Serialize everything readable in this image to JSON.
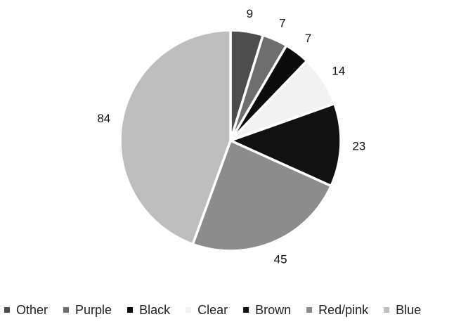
{
  "chart_data": {
    "type": "pie",
    "start_angle_deg": 0,
    "direction": "clockwise",
    "legend_position": "bottom",
    "slices": [
      {
        "label": "Other",
        "value": 9,
        "color": "#4d4d4d"
      },
      {
        "label": "Purple",
        "value": 7,
        "color": "#6e6e6e"
      },
      {
        "label": "Black",
        "value": 7,
        "color": "#0b0b0b"
      },
      {
        "label": "Clear",
        "value": 14,
        "color": "#f2f2f2"
      },
      {
        "label": "Brown",
        "value": 23,
        "color": "#111111"
      },
      {
        "label": "Red/pink",
        "value": 45,
        "color": "#8c8c8c"
      },
      {
        "label": "Blue",
        "value": 84,
        "color": "#bdbdbd"
      }
    ]
  }
}
